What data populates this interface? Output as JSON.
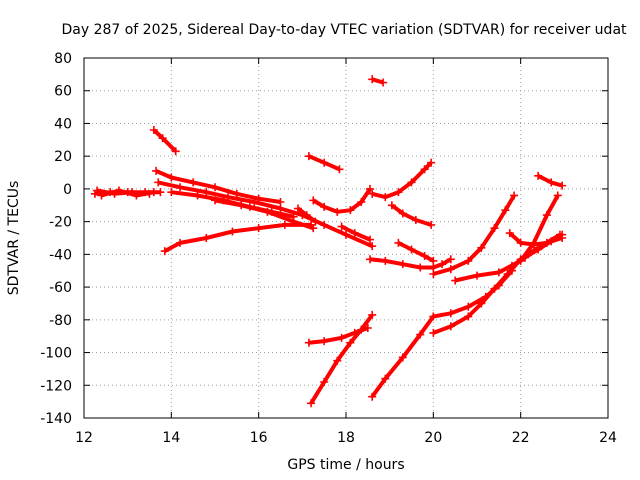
{
  "chart_data": {
    "type": "scatter",
    "title": "Day 287 of 2025, Sidereal Day-to-day VTEC variation (SDTVAR) for receiver udat",
    "xlabel": "GPS time / hours",
    "ylabel": "SDTVAR / TECUs",
    "xlim": [
      12,
      24
    ],
    "ylim": [
      -140,
      80
    ],
    "xticks": [
      12,
      14,
      16,
      18,
      20,
      22,
      24
    ],
    "yticks": [
      -140,
      -120,
      -100,
      -80,
      -60,
      -40,
      -20,
      0,
      20,
      40,
      60,
      80
    ],
    "grid": true,
    "marker": "plus",
    "color": "#ff0000",
    "tracks": [
      [
        [
          12.25,
          -3
        ],
        [
          12.6,
          -2
        ],
        [
          13.0,
          -2
        ],
        [
          13.4,
          -2
        ],
        [
          13.75,
          -2
        ]
      ],
      [
        [
          12.3,
          -1
        ],
        [
          12.7,
          -3
        ],
        [
          13.1,
          -2
        ],
        [
          13.5,
          -3
        ]
      ],
      [
        [
          12.4,
          -4
        ],
        [
          12.8,
          -1
        ],
        [
          13.2,
          -4
        ],
        [
          13.6,
          -2
        ]
      ],
      [
        [
          13.6,
          36
        ],
        [
          13.8,
          31
        ],
        [
          14.1,
          23
        ]
      ],
      [
        [
          13.65,
          11
        ],
        [
          14.0,
          7
        ],
        [
          14.5,
          4
        ],
        [
          15.0,
          1
        ],
        [
          15.5,
          -3
        ],
        [
          16.0,
          -6
        ],
        [
          16.5,
          -8
        ]
      ],
      [
        [
          13.7,
          4
        ],
        [
          14.2,
          1
        ],
        [
          14.8,
          -2
        ],
        [
          15.3,
          -5
        ],
        [
          15.9,
          -8
        ],
        [
          16.5,
          -12
        ],
        [
          17.0,
          -16
        ],
        [
          17.5,
          -22
        ],
        [
          18.0,
          -28
        ],
        [
          18.6,
          -35
        ]
      ],
      [
        [
          14.0,
          -2
        ],
        [
          14.6,
          -4
        ],
        [
          15.2,
          -7
        ],
        [
          15.8,
          -11
        ],
        [
          16.3,
          -14
        ],
        [
          16.8,
          -17
        ]
      ],
      [
        [
          13.85,
          -38
        ],
        [
          14.2,
          -33
        ],
        [
          14.8,
          -30
        ],
        [
          15.4,
          -26
        ],
        [
          16.0,
          -24
        ],
        [
          16.6,
          -22
        ],
        [
          17.2,
          -22
        ]
      ],
      [
        [
          15.0,
          -7
        ],
        [
          15.6,
          -10
        ],
        [
          16.2,
          -14
        ],
        [
          16.8,
          -20
        ],
        [
          17.25,
          -24
        ]
      ],
      [
        [
          16.9,
          -12
        ],
        [
          17.1,
          -16
        ],
        [
          17.3,
          -20
        ]
      ],
      [
        [
          17.25,
          -7
        ],
        [
          17.5,
          -11
        ],
        [
          17.8,
          -14
        ],
        [
          18.1,
          -13
        ],
        [
          18.35,
          -8
        ],
        [
          18.55,
          0
        ]
      ],
      [
        [
          17.15,
          20
        ],
        [
          17.5,
          16
        ],
        [
          17.85,
          12
        ]
      ],
      [
        [
          17.9,
          -23
        ],
        [
          18.2,
          -27
        ],
        [
          18.55,
          -31
        ]
      ],
      [
        [
          18.6,
          67
        ],
        [
          18.85,
          65
        ]
      ],
      [
        [
          18.6,
          -3
        ],
        [
          18.9,
          -5
        ],
        [
          19.2,
          -2
        ],
        [
          19.5,
          4
        ],
        [
          19.8,
          12
        ],
        [
          19.95,
          16
        ]
      ],
      [
        [
          19.05,
          -10
        ],
        [
          19.3,
          -15
        ],
        [
          19.6,
          -19
        ],
        [
          19.95,
          -22
        ]
      ],
      [
        [
          19.2,
          -33
        ],
        [
          19.5,
          -37
        ],
        [
          19.8,
          -41
        ],
        [
          20.0,
          -44
        ]
      ],
      [
        [
          18.55,
          -43
        ],
        [
          18.9,
          -44
        ],
        [
          19.3,
          -46
        ],
        [
          19.7,
          -48
        ],
        [
          20.0,
          -48
        ],
        [
          20.2,
          -46
        ],
        [
          20.4,
          -43
        ]
      ],
      [
        [
          17.2,
          -131
        ],
        [
          17.5,
          -118
        ],
        [
          17.8,
          -105
        ],
        [
          18.1,
          -94
        ],
        [
          18.35,
          -86
        ],
        [
          18.6,
          -77
        ]
      ],
      [
        [
          17.15,
          -94
        ],
        [
          17.5,
          -93
        ],
        [
          17.9,
          -91
        ],
        [
          18.2,
          -88
        ],
        [
          18.5,
          -85
        ]
      ],
      [
        [
          18.6,
          -127
        ],
        [
          18.9,
          -116
        ],
        [
          19.3,
          -103
        ],
        [
          19.7,
          -89
        ],
        [
          20.0,
          -78
        ],
        [
          20.4,
          -76
        ],
        [
          20.8,
          -72
        ],
        [
          21.2,
          -66
        ],
        [
          21.5,
          -59
        ],
        [
          21.8,
          -50
        ]
      ],
      [
        [
          20.0,
          -88
        ],
        [
          20.4,
          -84
        ],
        [
          20.8,
          -78
        ],
        [
          21.1,
          -70
        ],
        [
          21.4,
          -61
        ],
        [
          21.7,
          -52
        ],
        [
          22.0,
          -43
        ],
        [
          22.4,
          -36
        ],
        [
          22.9,
          -28
        ]
      ],
      [
        [
          20.0,
          -52
        ],
        [
          20.4,
          -49
        ],
        [
          20.8,
          -44
        ],
        [
          21.1,
          -36
        ],
        [
          21.4,
          -24
        ],
        [
          21.65,
          -13
        ],
        [
          21.85,
          -4
        ]
      ],
      [
        [
          20.5,
          -56
        ],
        [
          21.0,
          -53
        ],
        [
          21.5,
          -51
        ],
        [
          22.0,
          -44
        ],
        [
          22.3,
          -33
        ],
        [
          22.6,
          -16
        ],
        [
          22.85,
          -4
        ]
      ],
      [
        [
          21.8,
          -47
        ],
        [
          22.1,
          -42
        ],
        [
          22.4,
          -37
        ],
        [
          22.7,
          -32
        ],
        [
          22.95,
          -28
        ]
      ],
      [
        [
          21.75,
          -27
        ],
        [
          22.0,
          -33
        ],
        [
          22.3,
          -34
        ],
        [
          22.6,
          -33
        ],
        [
          22.95,
          -30
        ]
      ],
      [
        [
          22.4,
          8
        ],
        [
          22.7,
          4
        ],
        [
          22.95,
          2
        ]
      ]
    ]
  }
}
